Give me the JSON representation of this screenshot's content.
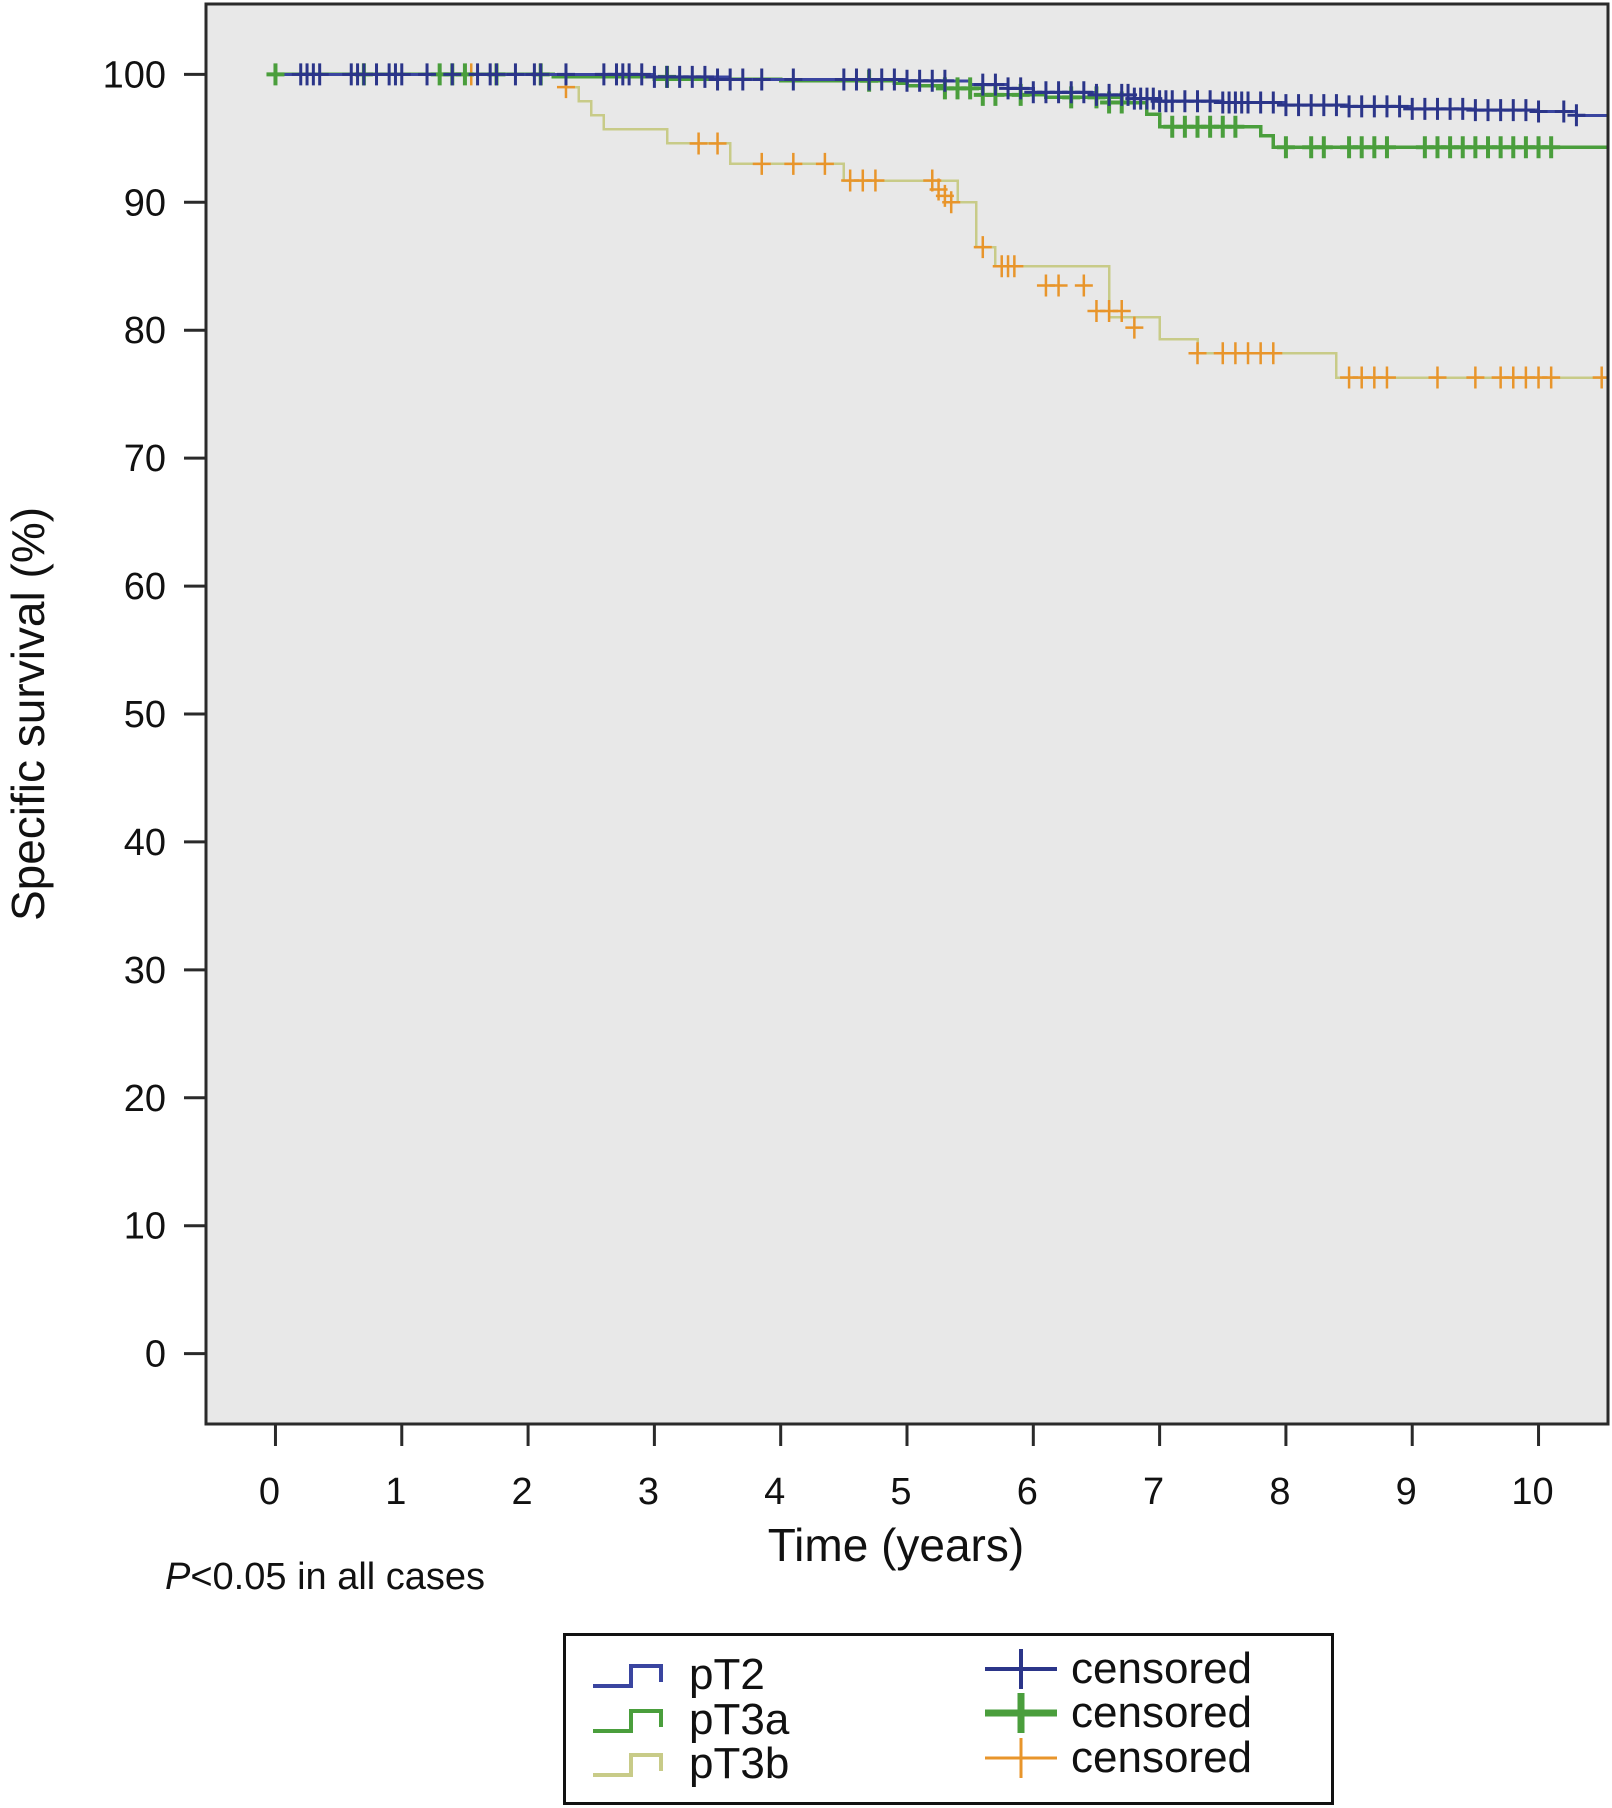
{
  "chart_data": {
    "type": "line",
    "subtype": "kaplan-meier",
    "title": "",
    "xlabel": "Time (years)",
    "ylabel": "Specific survival (%)",
    "xlim": [
      -0.55,
      10.55
    ],
    "ylim": [
      -5.5,
      105.5
    ],
    "xticks": [
      0,
      1,
      2,
      3,
      4,
      5,
      6,
      7,
      8,
      9,
      10
    ],
    "yticks": [
      0,
      10,
      20,
      30,
      40,
      50,
      60,
      70,
      80,
      90,
      100
    ],
    "grid": false,
    "background": "#e8e8e8",
    "legend_position": "bottom",
    "series": [
      {
        "name": "pT2",
        "color": "#3a45a0",
        "x": [
          0,
          3.0,
          3.6,
          4.3,
          5.0,
          5.5,
          5.8,
          6.0,
          6.5,
          6.8,
          7.0,
          7.5,
          8.0,
          8.5,
          9.0,
          9.5,
          10.0,
          10.3,
          10.55
        ],
        "y": [
          100,
          99.8,
          99.6,
          99.6,
          99.5,
          99.2,
          98.9,
          98.6,
          98.4,
          98.1,
          97.9,
          97.8,
          97.6,
          97.5,
          97.3,
          97.2,
          97.1,
          96.8,
          95.9
        ],
        "censored_x": [
          0.2,
          0.25,
          0.3,
          0.35,
          0.6,
          0.65,
          0.7,
          0.8,
          0.9,
          0.95,
          1.0,
          1.2,
          1.4,
          1.6,
          1.7,
          1.75,
          1.9,
          2.05,
          2.1,
          2.3,
          2.6,
          2.7,
          2.75,
          2.8,
          2.9,
          3.0,
          3.1,
          3.2,
          3.3,
          3.4,
          3.5,
          3.6,
          3.7,
          3.85,
          4.1,
          4.5,
          4.6,
          4.7,
          4.8,
          4.9,
          5.0,
          5.1,
          5.2,
          5.3,
          5.6,
          5.7,
          5.8,
          5.9,
          6.0,
          6.1,
          6.2,
          6.3,
          6.4,
          6.5,
          6.6,
          6.7,
          6.75,
          6.8,
          6.85,
          6.9,
          6.95,
          7.0,
          7.05,
          7.1,
          7.2,
          7.3,
          7.4,
          7.5,
          7.55,
          7.6,
          7.65,
          7.7,
          7.8,
          7.9,
          8.0,
          8.1,
          8.2,
          8.3,
          8.4,
          8.5,
          8.6,
          8.7,
          8.8,
          8.9,
          9.0,
          9.1,
          9.2,
          9.3,
          9.4,
          9.5,
          9.6,
          9.7,
          9.8,
          9.9,
          10.0,
          10.2,
          10.3
        ],
        "censored_y": [
          100,
          100,
          100,
          100,
          100,
          100,
          100,
          100,
          100,
          100,
          100,
          100,
          100,
          100,
          100,
          100,
          100,
          100,
          100,
          100,
          100,
          100,
          100,
          100,
          100,
          99.8,
          99.8,
          99.8,
          99.8,
          99.8,
          99.6,
          99.6,
          99.6,
          99.6,
          99.6,
          99.6,
          99.6,
          99.6,
          99.6,
          99.6,
          99.5,
          99.5,
          99.5,
          99.5,
          99.2,
          99.2,
          98.9,
          98.9,
          98.6,
          98.6,
          98.6,
          98.6,
          98.6,
          98.4,
          98.4,
          98.4,
          98.4,
          98.1,
          98.1,
          98.1,
          98.1,
          97.9,
          97.9,
          97.9,
          97.9,
          97.9,
          97.9,
          97.8,
          97.8,
          97.8,
          97.8,
          97.8,
          97.8,
          97.8,
          97.6,
          97.6,
          97.6,
          97.6,
          97.6,
          97.5,
          97.5,
          97.5,
          97.5,
          97.5,
          97.3,
          97.3,
          97.3,
          97.3,
          97.3,
          97.2,
          97.2,
          97.2,
          97.2,
          97.2,
          97.1,
          97.1,
          96.8
        ]
      },
      {
        "name": "pT3a",
        "color": "#4a9e3c",
        "x": [
          0,
          2.2,
          3.0,
          4.0,
          4.9,
          5.0,
          5.3,
          5.6,
          6.1,
          6.7,
          6.9,
          7.0,
          7.8,
          7.9,
          10.55
        ],
        "y": [
          100,
          99.8,
          99.6,
          99.5,
          99.3,
          99.1,
          98.9,
          98.4,
          98.2,
          97.8,
          96.9,
          95.9,
          95.2,
          94.3,
          92.0
        ],
        "censored_x": [
          0.0,
          0.7,
          1.3,
          1.4,
          1.5,
          1.75,
          2.1,
          3.1,
          4.7,
          5.3,
          5.4,
          5.5,
          5.6,
          5.7,
          5.9,
          6.3,
          6.5,
          6.6,
          6.7,
          7.1,
          7.2,
          7.3,
          7.4,
          7.5,
          7.6,
          8.0,
          8.2,
          8.3,
          8.5,
          8.6,
          8.7,
          8.8,
          9.1,
          9.2,
          9.3,
          9.4,
          9.5,
          9.6,
          9.7,
          9.8,
          9.9,
          10.0,
          10.1
        ],
        "censored_y": [
          100,
          100,
          100,
          100,
          100,
          100,
          100,
          99.8,
          99.5,
          98.9,
          98.9,
          98.9,
          98.4,
          98.4,
          98.4,
          98.2,
          98.2,
          97.8,
          97.8,
          95.9,
          95.9,
          95.9,
          95.9,
          95.9,
          95.9,
          94.3,
          94.3,
          94.3,
          94.3,
          94.3,
          94.3,
          94.3,
          94.3,
          94.3,
          94.3,
          94.3,
          94.3,
          94.3,
          94.3,
          94.3,
          94.3,
          94.3,
          94.3
        ]
      },
      {
        "name": "pT3b",
        "color": "#c8cb88",
        "x": [
          0,
          2.3,
          2.4,
          2.5,
          2.6,
          3.1,
          3.6,
          4.5,
          5.4,
          5.55,
          5.7,
          6.6,
          7.0,
          7.3,
          8.4,
          10.55
        ],
        "y": [
          100,
          99.0,
          97.9,
          96.8,
          95.7,
          94.6,
          93.0,
          91.7,
          90.0,
          86.5,
          85.0,
          81.0,
          79.3,
          78.2,
          76.3,
          76.3
        ],
        "censored_x": [
          0.7,
          1.55,
          2.1,
          2.3,
          3.35,
          3.5,
          3.85,
          4.1,
          4.35,
          4.55,
          4.65,
          4.75,
          5.2,
          5.25,
          5.3,
          5.35,
          5.6,
          5.75,
          5.8,
          5.85,
          6.1,
          6.2,
          6.4,
          6.5,
          6.6,
          6.7,
          6.8,
          7.3,
          7.5,
          7.6,
          7.7,
          7.8,
          7.9,
          8.5,
          8.6,
          8.7,
          8.8,
          9.2,
          9.5,
          9.7,
          9.8,
          9.9,
          10.0,
          10.1,
          10.5
        ],
        "censored_y": [
          100,
          100,
          100,
          99.0,
          94.6,
          94.6,
          93.0,
          93.0,
          93.0,
          91.7,
          91.7,
          91.7,
          91.7,
          91.0,
          90.5,
          90.0,
          86.5,
          85.0,
          85.0,
          85.0,
          83.5,
          83.5,
          83.5,
          81.5,
          81.5,
          81.5,
          80.2,
          78.2,
          78.2,
          78.2,
          78.2,
          78.2,
          78.2,
          76.3,
          76.3,
          76.3,
          76.3,
          76.3,
          76.3,
          76.3,
          76.3,
          76.3,
          76.3,
          76.3,
          76.3
        ]
      }
    ],
    "annotation": {
      "p_italic": "P",
      "p_rest": "<0.05 in all cases"
    },
    "legend": {
      "curves": [
        {
          "label": "pT2",
          "color": "#3a45a0"
        },
        {
          "label": "pT3a",
          "color": "#4a9e3c"
        },
        {
          "label": "pT3b",
          "color": "#c8cb88"
        }
      ],
      "censored": [
        {
          "label": "censored",
          "color": "#2b3589"
        },
        {
          "label": "censored",
          "color": "#4a9e3c"
        },
        {
          "label": "censored",
          "color": "#e8952b"
        }
      ]
    }
  }
}
